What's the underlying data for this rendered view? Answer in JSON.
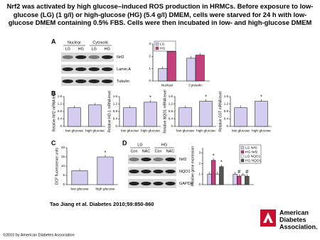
{
  "title": "Nrf2 was activated by high glucose–induced ROS production in HRMCs. Before exposure to low-glucose (LG) (1 g/l) or high-glucose (HG) (5.4 g/l) DMEM, cells were starved for 24 h with low-glucose DMEM containing 0.5% FBS. Cells were then incubated in low- and high-glucose DMEM",
  "panel_labels": [
    "A",
    "B",
    "C",
    "D"
  ],
  "blots": [
    {
      "headers": [
        "Nuclear",
        "Cytosolic"
      ],
      "lanes": [
        "LG",
        "HG",
        "LG",
        "HG"
      ],
      "rows": [
        "Nrf2",
        "Lamin A",
        "Tubulin"
      ]
    },
    {
      "headers": [
        "LG",
        "HG"
      ],
      "lanes": [
        "Con",
        "NAC",
        "Con",
        "NAC"
      ],
      "rows": [
        "Nrf2",
        "NQO1",
        "GAPDH"
      ]
    }
  ],
  "chart_data": [
    {
      "type": "bar",
      "categories": [
        "Nuclear",
        "Cytosolic"
      ],
      "ylim": [
        0,
        3
      ],
      "yticks": [
        0,
        1,
        2,
        3
      ],
      "legend": "upper left",
      "series": [
        {
          "name": "LG",
          "color": "#d4cdf0",
          "values": [
            1,
            1.85
          ],
          "sig": [
            null,
            null
          ]
        },
        {
          "name": "HG",
          "color": "#c2417d",
          "values": [
            2.4,
            2.1
          ],
          "sig": [
            "*",
            null
          ]
        }
      ]
    },
    {
      "type": "bar",
      "ylabel": "Relative Nrf2 mRNA level",
      "categories": [
        "low glucose",
        "high glucose"
      ],
      "values": [
        1,
        1.15
      ],
      "sig": [
        null,
        null
      ],
      "color": "#d4cdf0",
      "ylim": [
        0,
        1.6
      ],
      "yticks": [
        0,
        0.4,
        0.8,
        1.2,
        1.6
      ]
    },
    {
      "type": "bar",
      "ylabel": "Relative HO-1 mRNA level",
      "categories": [
        "low glucose",
        "high glucose"
      ],
      "values": [
        1,
        1.3
      ],
      "sig": [
        null,
        "*"
      ],
      "color": "#d4cdf0",
      "ylim": [
        0,
        1.6
      ],
      "yticks": [
        0,
        0.4,
        0.8,
        1.2,
        1.6
      ]
    },
    {
      "type": "bar",
      "ylabel": "Relative NQO1 mRNA level",
      "categories": [
        "low glucose",
        "high glucose"
      ],
      "values": [
        1,
        1.35
      ],
      "sig": [
        null,
        "*"
      ],
      "color": "#d4cdf0",
      "ylim": [
        0,
        1.6
      ],
      "yticks": [
        0,
        0.4,
        0.8,
        1.2,
        1.6
      ]
    },
    {
      "type": "bar",
      "ylabel": "Relative GST mRNA level",
      "categories": [
        "low glucose",
        "high glucose"
      ],
      "values": [
        1,
        1.35
      ],
      "sig": [
        null,
        "*"
      ],
      "color": "#d4cdf0",
      "ylim": [
        0,
        1.6
      ],
      "yticks": [
        0,
        0.4,
        0.8,
        1.2,
        1.6
      ]
    },
    {
      "type": "bar",
      "ylabel": "DCF fluorescence units",
      "categories": [
        "low glucose",
        "high glucose"
      ],
      "values": [
        7.5,
        15
      ],
      "sig": [
        null,
        "*"
      ],
      "color": "#d4cdf0",
      "ylim": [
        0,
        20
      ],
      "yticks": [
        0,
        5,
        10,
        15,
        20
      ]
    },
    {
      "type": "bar",
      "ylabel": "Relative gene expression",
      "categories": [
        null,
        null
      ],
      "ylim": [
        0,
        3.5
      ],
      "yticks": [
        0,
        1,
        2,
        3
      ],
      "legend": "upper right",
      "series": [
        {
          "name": "LG Nrf2",
          "color": "#d4cdf0",
          "values": [
            1,
            1
          ],
          "sig": [
            null,
            null
          ]
        },
        {
          "name": "HG Nrf2",
          "color": "#c2417d",
          "values": [
            2.3,
            0.8
          ],
          "sig": [
            "*",
            "#"
          ]
        },
        {
          "name": "LG NQO1",
          "color": "#ffffff",
          "values": [
            1,
            0.9
          ],
          "sig": [
            null,
            null
          ]
        },
        {
          "name": "HG NQO1",
          "color": "#555555",
          "values": [
            1.7,
            0.8
          ],
          "sig": [
            "*",
            "#"
          ]
        }
      ]
    }
  ],
  "citation": "Tao Jiang et al. Diabetes 2010;59:850-860",
  "copyright": "©2010 by American Diabetes Association",
  "logo": [
    "American",
    "Diabetes",
    "Association."
  ]
}
